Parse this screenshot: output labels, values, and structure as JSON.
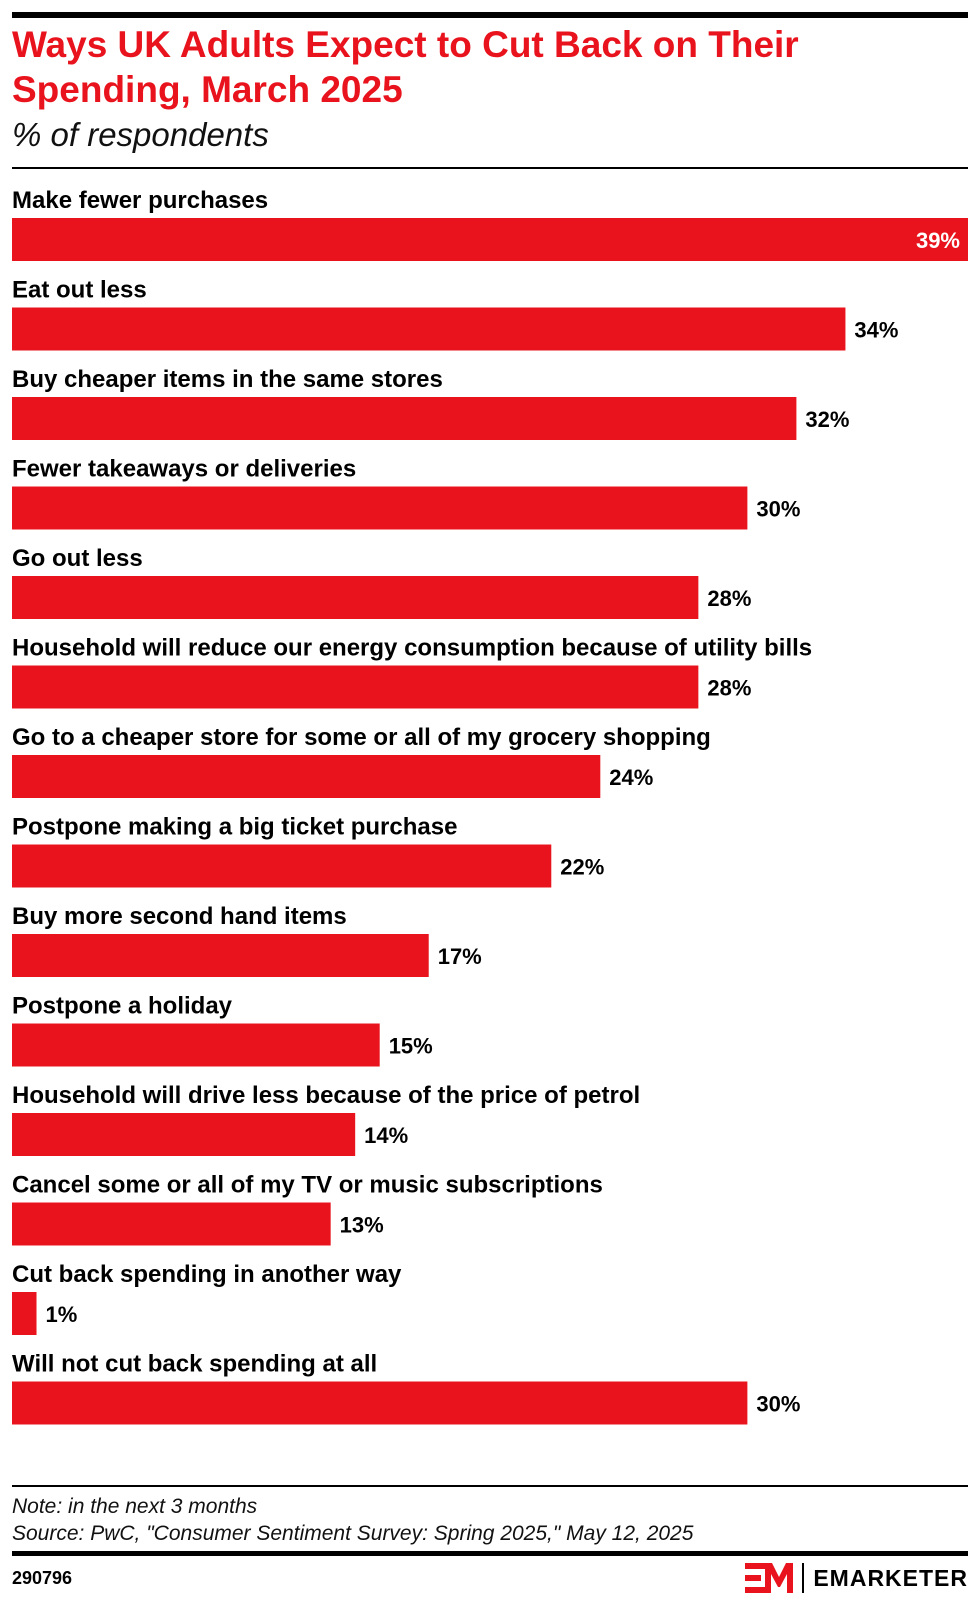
{
  "header": {
    "title": "Ways UK Adults Expect to Cut Back on Their Spending, March 2025",
    "subtitle": "% of respondents"
  },
  "footer": {
    "note": "Note: in the next 3 months",
    "source": "Source: PwC, \"Consumer Sentiment Survey: Spring 2025,\" May 12, 2025",
    "chart_id": "290796",
    "brand": "EMARKETER",
    "brand_icon": "em-logo-icon"
  },
  "colors": {
    "accent": "#e8131c",
    "text": "#000000",
    "label_inside": "#ffffff"
  },
  "chart_data": {
    "type": "bar",
    "orientation": "horizontal",
    "title": "Ways UK Adults Expect to Cut Back on Their Spending, March 2025",
    "subtitle": "% of respondents",
    "value_suffix": "%",
    "xlim": [
      0,
      39
    ],
    "grid": false,
    "categories": [
      "Make fewer purchases",
      "Eat out less",
      "Buy cheaper items in the same stores",
      "Fewer takeaways or deliveries",
      "Go out less",
      "Household will reduce our energy consumption because of utility bills",
      "Go to a cheaper store for some or all of my grocery shopping",
      "Postpone making a big ticket purchase",
      "Buy more second hand items",
      "Postpone a holiday",
      "Household will drive less because of the price of petrol",
      "Cancel some or all of my TV or music subscriptions",
      "Cut back spending in another way",
      "Will not cut back spending at all"
    ],
    "values": [
      39,
      34,
      32,
      30,
      28,
      28,
      24,
      22,
      17,
      15,
      14,
      13,
      1,
      30
    ]
  }
}
